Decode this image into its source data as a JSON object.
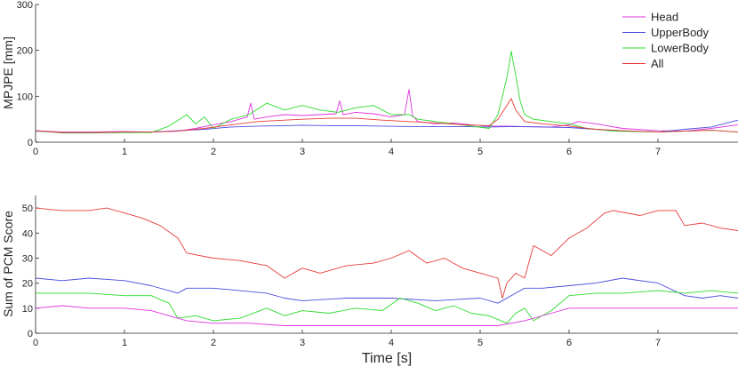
{
  "chart_data": [
    {
      "type": "line",
      "xlabel": "",
      "ylabel": "MPJPE [mm]",
      "xlim": [
        0,
        7.9
      ],
      "ylim": [
        0,
        300
      ],
      "xticks": [
        0,
        1,
        2,
        3,
        4,
        5,
        6,
        7
      ],
      "yticks": [
        0,
        100,
        200,
        300
      ],
      "grid": false,
      "legend_position": "top-right",
      "series": [
        {
          "name": "Head",
          "color": "#e033e0",
          "x": [
            0,
            0.3,
            0.6,
            1.0,
            1.3,
            1.6,
            1.8,
            2.0,
            2.2,
            2.38,
            2.42,
            2.46,
            2.6,
            2.8,
            3.0,
            3.2,
            3.38,
            3.42,
            3.46,
            3.6,
            3.8,
            4.0,
            4.15,
            4.2,
            4.24,
            4.3,
            4.5,
            4.7,
            4.9,
            5.1,
            5.3,
            5.5,
            5.8,
            6.0,
            6.1,
            6.3,
            6.6,
            7.0,
            7.3,
            7.6,
            7.9
          ],
          "y": [
            25,
            22,
            22,
            23,
            22,
            24,
            30,
            38,
            45,
            55,
            85,
            50,
            55,
            60,
            58,
            60,
            62,
            90,
            60,
            65,
            62,
            55,
            60,
            115,
            58,
            45,
            40,
            42,
            38,
            35,
            35,
            34,
            33,
            38,
            45,
            40,
            30,
            25,
            24,
            30,
            38
          ]
        },
        {
          "name": "UpperBody",
          "color": "#4a4ae0",
          "x": [
            0,
            0.3,
            0.6,
            1.0,
            1.3,
            1.6,
            1.9,
            2.2,
            2.5,
            2.8,
            3.0,
            3.3,
            3.6,
            3.9,
            4.2,
            4.5,
            4.8,
            5.1,
            5.4,
            5.7,
            6.0,
            6.3,
            6.6,
            7.0,
            7.3,
            7.6,
            7.9
          ],
          "y": [
            24,
            21,
            21,
            22,
            22,
            25,
            28,
            33,
            35,
            36,
            37,
            36,
            36,
            35,
            34,
            34,
            34,
            33,
            34,
            33,
            32,
            28,
            25,
            22,
            28,
            33,
            48
          ]
        },
        {
          "name": "LowerBody",
          "color": "#2adc2a",
          "x": [
            0,
            0.3,
            0.6,
            1.0,
            1.3,
            1.5,
            1.7,
            1.8,
            1.9,
            2.0,
            2.2,
            2.4,
            2.6,
            2.8,
            3.0,
            3.2,
            3.4,
            3.6,
            3.8,
            4.0,
            4.2,
            4.3,
            4.5,
            4.7,
            4.9,
            5.1,
            5.2,
            5.25,
            5.3,
            5.35,
            5.4,
            5.45,
            5.5,
            5.6,
            5.8,
            6.0,
            6.2,
            6.5,
            7.0,
            7.3,
            7.6,
            7.9
          ],
          "y": [
            25,
            20,
            20,
            21,
            21,
            35,
            60,
            40,
            55,
            30,
            50,
            60,
            85,
            70,
            80,
            70,
            65,
            75,
            80,
            60,
            60,
            50,
            45,
            40,
            35,
            30,
            60,
            100,
            140,
            198,
            145,
            90,
            60,
            50,
            45,
            40,
            30,
            24,
            22,
            24,
            26,
            22
          ]
        },
        {
          "name": "All",
          "color": "#e83a3a",
          "x": [
            0,
            0.3,
            0.6,
            1.0,
            1.3,
            1.6,
            1.9,
            2.2,
            2.5,
            2.8,
            3.0,
            3.3,
            3.6,
            3.9,
            4.2,
            4.5,
            4.8,
            5.1,
            5.2,
            5.3,
            5.35,
            5.4,
            5.5,
            5.7,
            6.0,
            6.3,
            6.6,
            7.0,
            7.3,
            7.6,
            7.9
          ],
          "y": [
            25,
            21,
            21,
            22,
            22,
            24,
            30,
            38,
            45,
            48,
            50,
            52,
            52,
            48,
            45,
            42,
            38,
            36,
            50,
            80,
            95,
            70,
            45,
            40,
            35,
            28,
            25,
            22,
            24,
            26,
            22
          ]
        }
      ]
    },
    {
      "type": "line",
      "xlabel": "Time [s]",
      "ylabel": "Sum of PCM Score",
      "xlim": [
        0,
        7.9
      ],
      "ylim": [
        0,
        55
      ],
      "xticks": [
        0,
        1,
        2,
        3,
        4,
        5,
        6,
        7
      ],
      "yticks": [
        0,
        10,
        20,
        30,
        40,
        50
      ],
      "grid": false,
      "series": [
        {
          "name": "",
          "color": "#e83a3a",
          "x": [
            0,
            0.3,
            0.6,
            0.8,
            1.0,
            1.2,
            1.4,
            1.6,
            1.7,
            2.0,
            2.3,
            2.6,
            2.8,
            3.0,
            3.2,
            3.5,
            3.8,
            4.0,
            4.2,
            4.4,
            4.6,
            4.8,
            5.0,
            5.2,
            5.25,
            5.3,
            5.4,
            5.5,
            5.6,
            5.8,
            6.0,
            6.2,
            6.4,
            6.5,
            6.8,
            7.0,
            7.2,
            7.3,
            7.5,
            7.7,
            7.9
          ],
          "y": [
            50,
            49,
            49,
            50,
            48,
            46,
            43,
            38,
            32,
            30,
            29,
            27,
            22,
            26,
            24,
            27,
            28,
            30,
            33,
            28,
            30,
            26,
            24,
            22,
            14,
            20,
            24,
            22,
            35,
            31,
            38,
            42,
            48,
            49,
            47,
            49,
            49,
            43,
            44,
            42,
            41
          ]
        },
        {
          "name": "",
          "color": "#4a4ae0",
          "x": [
            0,
            0.3,
            0.6,
            1.0,
            1.3,
            1.6,
            1.7,
            2.0,
            2.3,
            2.6,
            2.8,
            3.0,
            3.5,
            4.0,
            4.5,
            5.0,
            5.2,
            5.4,
            5.5,
            5.7,
            6.0,
            6.3,
            6.6,
            7.0,
            7.3,
            7.5,
            7.7,
            7.9
          ],
          "y": [
            22,
            21,
            22,
            21,
            19,
            16,
            18,
            18,
            17,
            16,
            14,
            13,
            14,
            14,
            13,
            14,
            12,
            16,
            18,
            18,
            19,
            20,
            22,
            20,
            15,
            14,
            15,
            14
          ]
        },
        {
          "name": "",
          "color": "#2adc2a",
          "x": [
            0,
            0.3,
            0.6,
            1.0,
            1.3,
            1.5,
            1.6,
            1.8,
            2.0,
            2.3,
            2.6,
            2.8,
            3.0,
            3.3,
            3.6,
            3.9,
            4.1,
            4.3,
            4.5,
            4.7,
            4.9,
            5.1,
            5.3,
            5.4,
            5.5,
            5.6,
            5.8,
            6.0,
            6.3,
            6.6,
            7.0,
            7.3,
            7.6,
            7.9
          ],
          "y": [
            16,
            16,
            16,
            15,
            15,
            12,
            6,
            7,
            5,
            6,
            10,
            7,
            9,
            8,
            10,
            9,
            14,
            12,
            9,
            11,
            8,
            7,
            4,
            8,
            10,
            5,
            9,
            15,
            16,
            16,
            17,
            16,
            17,
            16
          ]
        },
        {
          "name": "",
          "color": "#e033e0",
          "x": [
            0,
            0.3,
            0.6,
            1.0,
            1.3,
            1.5,
            1.7,
            2.0,
            2.4,
            2.8,
            3.2,
            3.6,
            4.0,
            4.4,
            4.8,
            5.2,
            5.5,
            5.8,
            6.0,
            6.3,
            6.6,
            7.0,
            7.3,
            7.6,
            7.9
          ],
          "y": [
            10,
            11,
            10,
            10,
            9,
            7,
            5,
            4,
            4,
            3,
            3,
            3,
            3,
            3,
            3,
            3,
            5,
            8,
            10,
            10,
            10,
            10,
            10,
            10,
            10
          ]
        }
      ]
    }
  ]
}
